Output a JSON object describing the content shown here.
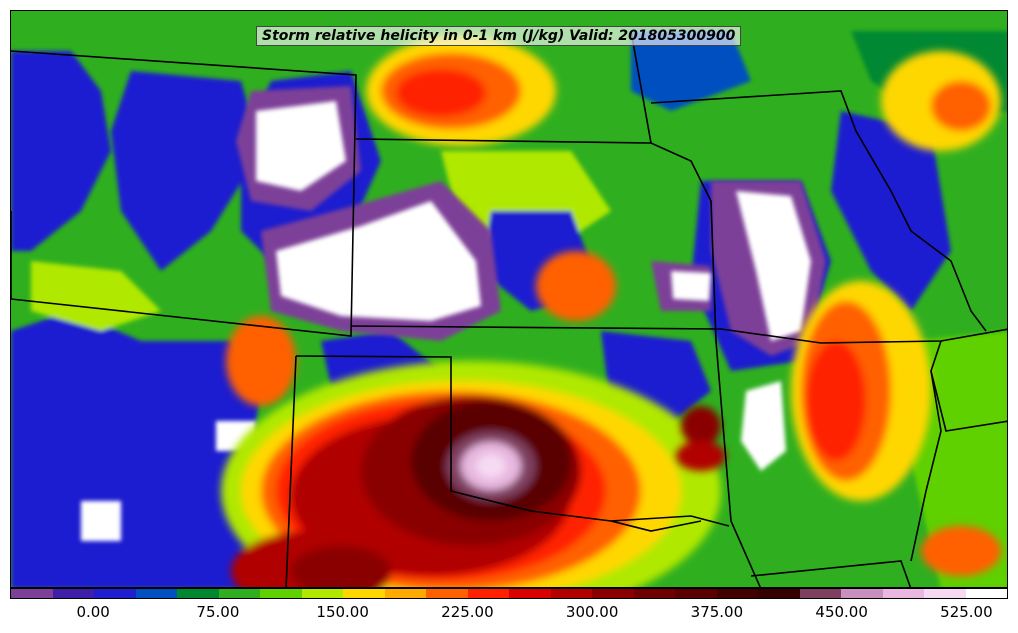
{
  "title": "Storm relative helicity in 0-1 km (J/kg) Valid: 201805300900",
  "colorbar": {
    "bins": [
      "#7d3f98",
      "#3f1faa",
      "#1f1fd0",
      "#0050c0",
      "#008830",
      "#2faf1f",
      "#5fd000",
      "#b0e800",
      "#ffd700",
      "#ffaa00",
      "#ff6000",
      "#ff2000",
      "#d80000",
      "#b00000",
      "#8a0000",
      "#700000",
      "#5a0000",
      "#420000",
      "#340000",
      "#7f4060",
      "#c88fbf",
      "#e8b8e0",
      "#f6daf3",
      "#ffffff"
    ],
    "ticks": [
      "0.00",
      "75.00",
      "150.00",
      "225.00",
      "300.00",
      "375.00",
      "450.00",
      "525.00"
    ]
  },
  "colors": {
    "background_green": "#2faf1f",
    "white": "#ffffff",
    "purple": "#7d3f98",
    "blue": "#1f1fd0",
    "lime": "#b0e800",
    "yellow": "#ffd700",
    "orange": "#ff6000",
    "red": "#ff2000",
    "darkred": "#8a0000",
    "maroon": "#420000",
    "pink": "#e8b8e0"
  }
}
